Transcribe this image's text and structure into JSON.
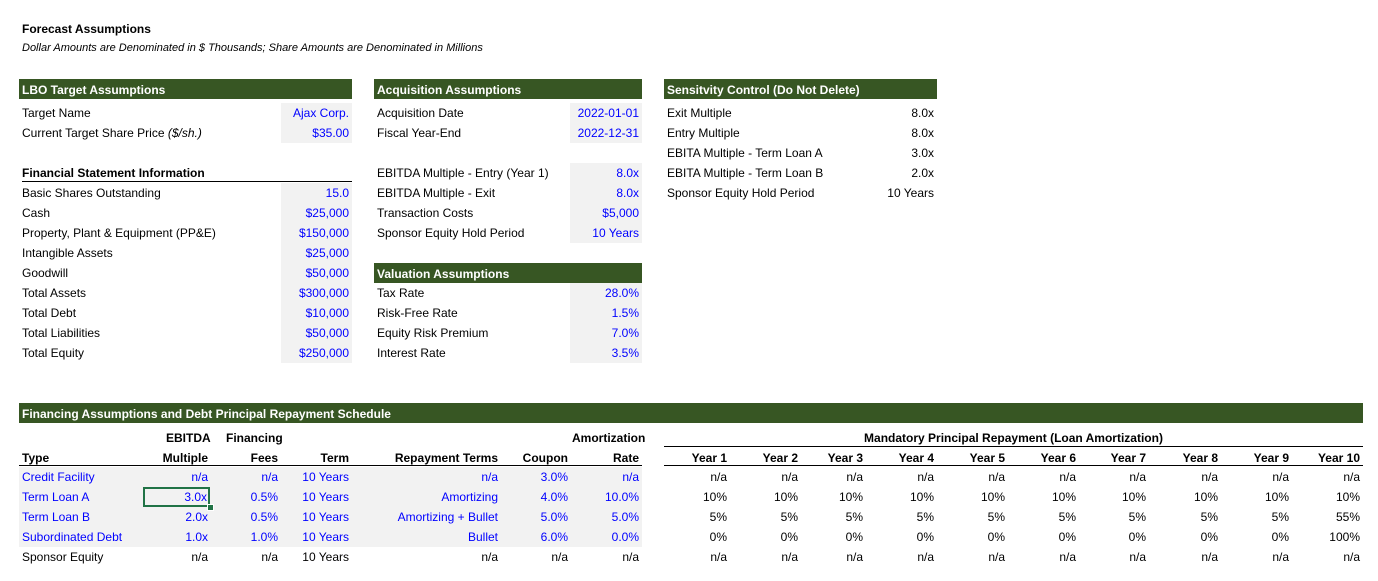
{
  "header": {
    "title": "Forecast Assumptions",
    "subtitle": "Dollar Amounts are Denominated in $ Thousands; Share Amounts are Denominated in Millions"
  },
  "lbo": {
    "heading": "LBO Target Assumptions",
    "rows": [
      {
        "label": "Target Name",
        "value": "Ajax Corp."
      },
      {
        "label": "Current Target Share Price",
        "label_suffix": "($/sh.)",
        "value": "$35.00"
      }
    ]
  },
  "fsi": {
    "heading": "Financial Statement Information",
    "rows": [
      {
        "label": "Basic Shares Outstanding",
        "value": "15.0"
      },
      {
        "label": "Cash",
        "value": "$25,000"
      },
      {
        "label": "Property, Plant & Equipment (PP&E)",
        "value": "$150,000"
      },
      {
        "label": "Intangible Assets",
        "value": "$25,000"
      },
      {
        "label": "Goodwill",
        "value": "$50,000"
      },
      {
        "label": "Total Assets",
        "value": "$300,000"
      },
      {
        "label": "Total Debt",
        "value": "$10,000"
      },
      {
        "label": "Total Liabilities",
        "value": "$50,000"
      },
      {
        "label": "Total Equity",
        "value": "$250,000"
      }
    ]
  },
  "acq": {
    "heading": "Acquisition Assumptions",
    "rows": [
      {
        "label": "Acquisition Date",
        "value": "2022-01-01"
      },
      {
        "label": "Fiscal Year-End",
        "value": "2022-12-31"
      }
    ],
    "rows2": [
      {
        "label": "EBITDA Multiple - Entry (Year 1)",
        "value": "8.0x"
      },
      {
        "label": "EBITDA Multiple - Exit",
        "value": "8.0x"
      },
      {
        "label": "Transaction Costs",
        "value": "$5,000"
      },
      {
        "label": "Sponsor Equity Hold Period",
        "value": "10 Years"
      }
    ]
  },
  "val": {
    "heading": "Valuation Assumptions",
    "rows": [
      {
        "label": "Tax Rate",
        "value": "28.0%"
      },
      {
        "label": "Risk-Free Rate",
        "value": "1.5%"
      },
      {
        "label": "Equity Risk Premium",
        "value": "7.0%"
      },
      {
        "label": "Interest Rate",
        "value": "3.5%"
      }
    ]
  },
  "sens": {
    "heading": "Sensitvity Control (Do Not Delete)",
    "rows": [
      {
        "label": "Exit Multiple",
        "value": "8.0x"
      },
      {
        "label": "Entry Multiple",
        "value": "8.0x"
      },
      {
        "label": "EBITA Multiple - Term Loan A",
        "value": "3.0x"
      },
      {
        "label": "EBITA Multiple - Term Loan B",
        "value": "2.0x"
      },
      {
        "label": "Sponsor Equity Hold Period",
        "value": "10 Years"
      }
    ]
  },
  "fin": {
    "heading": "Financing Assumptions and Debt Principal Repayment Schedule",
    "top_headers": {
      "ebitda": "EBITDA",
      "financing": "Financing",
      "amortization": "Amortization",
      "mandatory": "Mandatory Principal Repayment (Loan Amortization)"
    },
    "col_headers": {
      "type": "Type",
      "multiple": "Multiple",
      "fees": "Fees",
      "term": "Term",
      "repayment": "Repayment Terms",
      "coupon": "Coupon",
      "rate": "Rate"
    },
    "years": [
      "Year 1",
      "Year 2",
      "Year 3",
      "Year 4",
      "Year 5",
      "Year 6",
      "Year 7",
      "Year 8",
      "Year 9",
      "Year 10"
    ],
    "rows": [
      {
        "type": "Credit Facility",
        "multiple": "n/a",
        "fees": "n/a",
        "term": "10 Years",
        "repayment": "n/a",
        "coupon": "3.0%",
        "rate": "n/a",
        "years": [
          "n/a",
          "n/a",
          "n/a",
          "n/a",
          "n/a",
          "n/a",
          "n/a",
          "n/a",
          "n/a",
          "n/a"
        ]
      },
      {
        "type": "Term Loan A",
        "multiple": "3.0x",
        "fees": "0.5%",
        "term": "10 Years",
        "repayment": "Amortizing",
        "coupon": "4.0%",
        "rate": "10.0%",
        "years": [
          "10%",
          "10%",
          "10%",
          "10%",
          "10%",
          "10%",
          "10%",
          "10%",
          "10%",
          "10%"
        ]
      },
      {
        "type": "Term Loan B",
        "multiple": "2.0x",
        "fees": "0.5%",
        "term": "10 Years",
        "repayment": "Amortizing + Bullet",
        "coupon": "5.0%",
        "rate": "5.0%",
        "years": [
          "5%",
          "5%",
          "5%",
          "5%",
          "5%",
          "5%",
          "5%",
          "5%",
          "5%",
          "55%"
        ]
      },
      {
        "type": "Subordinated Debt",
        "multiple": "1.0x",
        "fees": "1.0%",
        "term": "10 Years",
        "repayment": "Bullet",
        "coupon": "6.0%",
        "rate": "0.0%",
        "years": [
          "0%",
          "0%",
          "0%",
          "0%",
          "0%",
          "0%",
          "0%",
          "0%",
          "0%",
          "100%"
        ]
      },
      {
        "type": "Sponsor Equity",
        "multiple": "n/a",
        "fees": "n/a",
        "term": "10 Years",
        "repayment": "n/a",
        "coupon": "n/a",
        "rate": "n/a",
        "years": [
          "n/a",
          "n/a",
          "n/a",
          "n/a",
          "n/a",
          "n/a",
          "n/a",
          "n/a",
          "n/a",
          "n/a"
        ]
      }
    ]
  },
  "colors": {
    "header_green": "#375623",
    "input_blue": "#0000ff",
    "input_fill": "#f2f2f2",
    "selection_green": "#217346"
  }
}
